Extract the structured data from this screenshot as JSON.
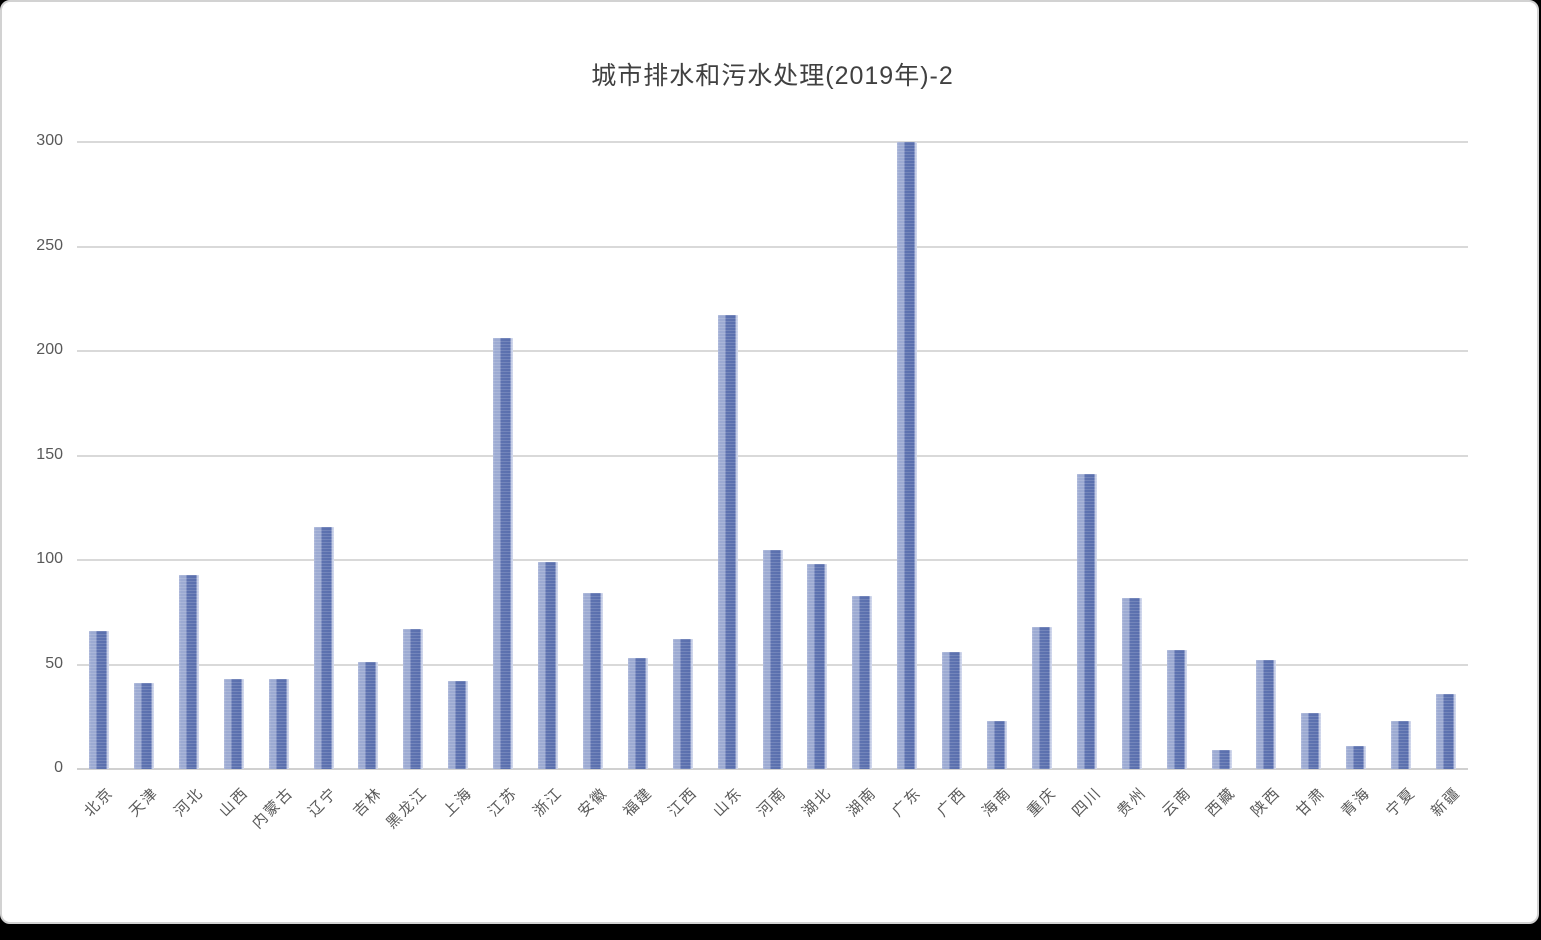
{
  "window": {
    "background_color": "#000000",
    "card_background": "#ffffff",
    "card_border_color": "#d2d2d2"
  },
  "chart_data": {
    "type": "bar",
    "title": "城市排水和污水处理(2019年)-2",
    "categories": [
      "北京",
      "天津",
      "河北",
      "山西",
      "内蒙古",
      "辽宁",
      "吉林",
      "黑龙江",
      "上海",
      "江苏",
      "浙江",
      "安徽",
      "福建",
      "江西",
      "山东",
      "河南",
      "湖北",
      "湖南",
      "广东",
      "广西",
      "海南",
      "重庆",
      "四川",
      "贵州",
      "云南",
      "西藏",
      "陕西",
      "甘肃",
      "青海",
      "宁夏",
      "新疆"
    ],
    "values": [
      66,
      41,
      93,
      43,
      43,
      116,
      51,
      67,
      42,
      206,
      99,
      84,
      53,
      62,
      217,
      105,
      98,
      83,
      300,
      56,
      23,
      68,
      141,
      82,
      57,
      9,
      52,
      27,
      11,
      23,
      36
    ],
    "xlabel": "",
    "ylabel": "",
    "ylim": [
      0,
      300
    ],
    "yticks": [
      0,
      50,
      100,
      150,
      200,
      250,
      300
    ],
    "grid": true,
    "legend_position": "none",
    "x_label_rotation_deg": -45,
    "colors": {
      "bar_light": "#9caad2",
      "bar_dark": "#5e73b0",
      "bar_edge_light": "#cdd4ea",
      "gridline": "#d9d9d9",
      "tick_label": "#595959",
      "title": "#404040"
    }
  }
}
